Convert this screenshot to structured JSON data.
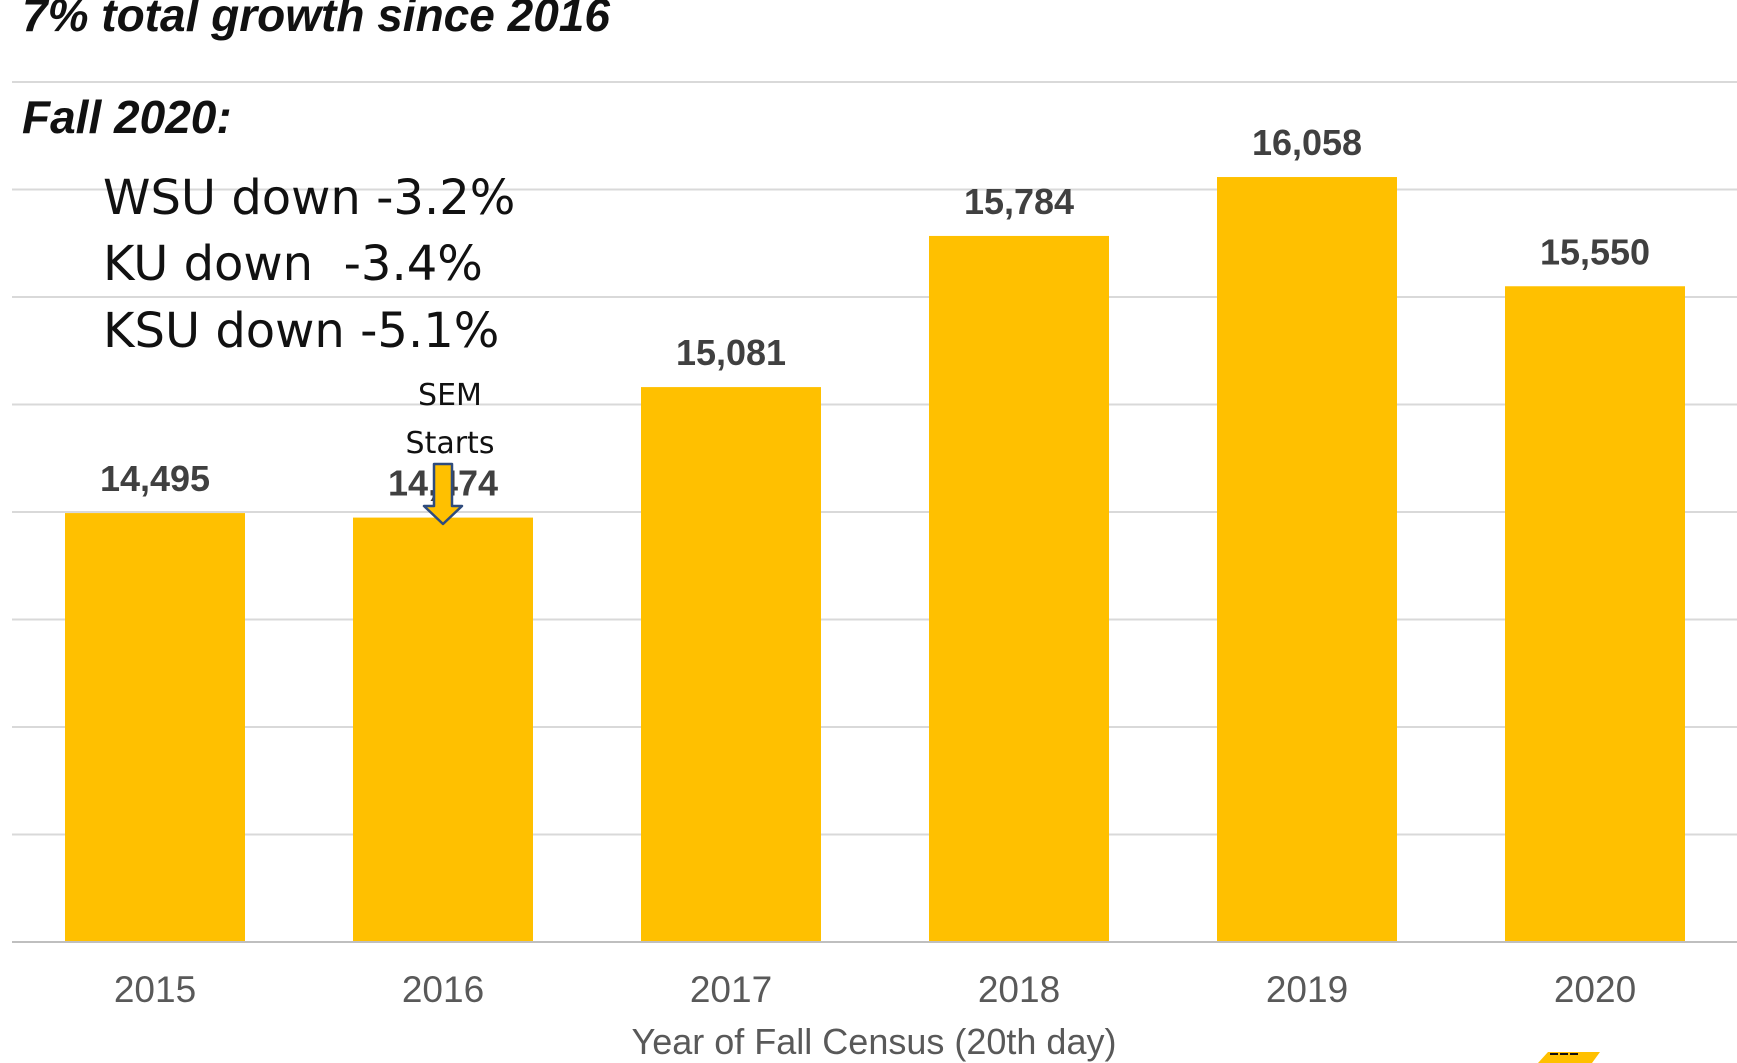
{
  "headline": {
    "title": "7% total growth since 2016",
    "subtitle": "Fall 2020:"
  },
  "declines": [
    "WSU down -3.2%",
    "KU down  -3.4%",
    "KSU down -5.1%"
  ],
  "annotation": {
    "line1": "SEM",
    "line2": "Starts",
    "arrow_color": "#FFC000",
    "arrow_outline": "#2F4B7C"
  },
  "colors": {
    "bar": "#FFC000",
    "gridline": "#D9D9D9",
    "axis_line": "#BFBFBF",
    "value_label": "#404040",
    "tick_label": "#595959"
  },
  "chart_data": {
    "type": "bar",
    "categories": [
      "2015",
      "2016",
      "2017",
      "2018",
      "2019",
      "2020"
    ],
    "values": [
      14495,
      14474,
      15081,
      15784,
      16058,
      15550
    ],
    "data_labels": [
      "14,495",
      "14,474",
      "15,081",
      "15,784",
      "16,058",
      "15,550"
    ],
    "title": "",
    "xlabel": "Year of Fall Census (20th day)",
    "ylabel": "",
    "ylim": [
      12500,
      16500
    ],
    "grid": true,
    "legend": "none"
  }
}
